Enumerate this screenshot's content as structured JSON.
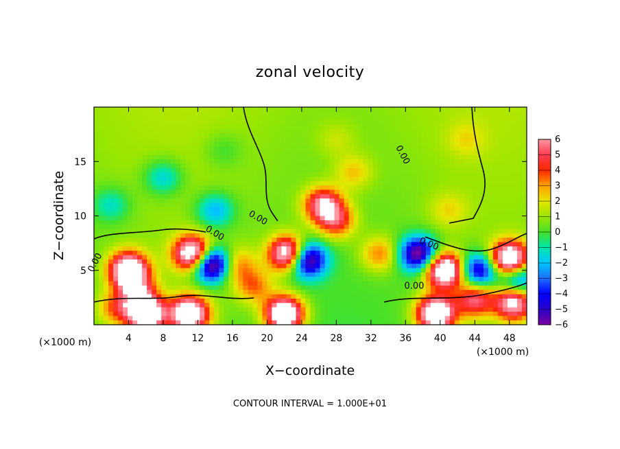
{
  "chart_data": {
    "type": "heatmap",
    "title": "zonal velocity",
    "xlabel": "X−coordinate",
    "ylabel": "Z−coordinate",
    "x_unit_left": "(×1000 m)",
    "x_unit_right": "(×1000 m)",
    "xlim": [
      0,
      50
    ],
    "ylim": [
      0,
      20
    ],
    "x_ticks": [
      {
        "value": 4,
        "label": "4"
      },
      {
        "value": 8,
        "label": "8"
      },
      {
        "value": 12,
        "label": "12"
      },
      {
        "value": 16,
        "label": "16"
      },
      {
        "value": 20,
        "label": "20"
      },
      {
        "value": 24,
        "label": "24"
      },
      {
        "value": 28,
        "label": "28"
      },
      {
        "value": 32,
        "label": "32"
      },
      {
        "value": 36,
        "label": "36"
      },
      {
        "value": 40,
        "label": "40"
      },
      {
        "value": 44,
        "label": "44"
      },
      {
        "value": 48,
        "label": "48"
      }
    ],
    "y_ticks": [
      {
        "value": 5,
        "label": "5"
      },
      {
        "value": 10,
        "label": "10"
      },
      {
        "value": 15,
        "label": "15"
      }
    ],
    "colorbar": {
      "range": [
        -6,
        6
      ],
      "labels": [
        {
          "value": 6,
          "label": "6"
        },
        {
          "value": 5,
          "label": "5"
        },
        {
          "value": 4,
          "label": "4"
        },
        {
          "value": 3,
          "label": "3"
        },
        {
          "value": 2,
          "label": "2"
        },
        {
          "value": 1,
          "label": "1"
        },
        {
          "value": 0,
          "label": "0"
        },
        {
          "value": -1,
          "label": "−1"
        },
        {
          "value": -2,
          "label": "−2"
        },
        {
          "value": -3,
          "label": "−3"
        },
        {
          "value": -4,
          "label": "−4"
        },
        {
          "value": -5,
          "label": "−5"
        },
        {
          "value": -6,
          "label": "−6"
        }
      ],
      "colors": [
        "#7a00a0",
        "#2a00c8",
        "#0000ff",
        "#1e6eff",
        "#00c8ff",
        "#00e6aa",
        "#46e028",
        "#9be600",
        "#e6e600",
        "#ffa000",
        "#ff2800",
        "#ff3c50",
        "#ff96a0"
      ]
    },
    "contour_labels": [
      {
        "x": 0.4,
        "y": 5.6,
        "text": "0.00",
        "angle": -62
      },
      {
        "x": 13.8,
        "y": 8.2,
        "text": "0.00",
        "angle": 32
      },
      {
        "x": 18.8,
        "y": 9.6,
        "text": "0.00",
        "angle": 30
      },
      {
        "x": 38.6,
        "y": 7.2,
        "text": "0.00",
        "angle": 22
      },
      {
        "x": 35.4,
        "y": 15.5,
        "text": "0.00",
        "angle": 62
      },
      {
        "x": 37.0,
        "y": 3.3,
        "text": "0.00",
        "angle": 0
      }
    ],
    "features": [
      {
        "x": 4.0,
        "y": 5.0,
        "v": 9
      },
      {
        "x": 11.5,
        "y": 6.5,
        "v": 9
      },
      {
        "x": 13.5,
        "y": 5.6,
        "v": -9
      },
      {
        "x": 5.0,
        "y": 3.0,
        "v": 4
      },
      {
        "x": 16.5,
        "y": 5.5,
        "v": 3
      },
      {
        "x": 18.5,
        "y": 3.5,
        "v": 3
      },
      {
        "x": 22.5,
        "y": 6.5,
        "v": 9
      },
      {
        "x": 24.5,
        "y": 6.0,
        "v": -8
      },
      {
        "x": 26.5,
        "y": 11.0,
        "v": 6
      },
      {
        "x": 28.0,
        "y": 9.5,
        "v": 4
      },
      {
        "x": 14.0,
        "y": 10.5,
        "v": -3
      },
      {
        "x": 33.0,
        "y": 6.5,
        "v": 3
      },
      {
        "x": 37.5,
        "y": 6.5,
        "v": -7
      },
      {
        "x": 40.5,
        "y": 5.0,
        "v": 9
      },
      {
        "x": 44.5,
        "y": 5.0,
        "v": -6
      },
      {
        "x": 48.0,
        "y": 6.0,
        "v": 9
      },
      {
        "x": 49.0,
        "y": 4.2,
        "v": -5
      },
      {
        "x": 44.0,
        "y": 2.3,
        "v": 5
      },
      {
        "x": 48.5,
        "y": 2.0,
        "v": 7
      },
      {
        "x": 22.0,
        "y": 1.0,
        "v": 9
      },
      {
        "x": 11.0,
        "y": 1.0,
        "v": 9
      },
      {
        "x": 39.5,
        "y": 1.0,
        "v": 9
      },
      {
        "x": 2.5,
        "y": 1.5,
        "v": 3
      },
      {
        "x": 6.0,
        "y": 1.0,
        "v": 9
      },
      {
        "x": 41.0,
        "y": 10.5,
        "v": 1.5
      },
      {
        "x": 8.0,
        "y": 13.5,
        "v": -2.5
      },
      {
        "x": 2.0,
        "y": 11.0,
        "v": -2
      },
      {
        "x": 43.0,
        "y": 17.0,
        "v": 1.2
      },
      {
        "x": 28.0,
        "y": 17.0,
        "v": 1.0
      },
      {
        "x": 30.0,
        "y": 14.0,
        "v": 2.0
      },
      {
        "x": 15.0,
        "y": 16.0,
        "v": -1.0
      }
    ]
  },
  "footer": {
    "contour_interval": "CONTOUR INTERVAL = 1.000E+01"
  }
}
